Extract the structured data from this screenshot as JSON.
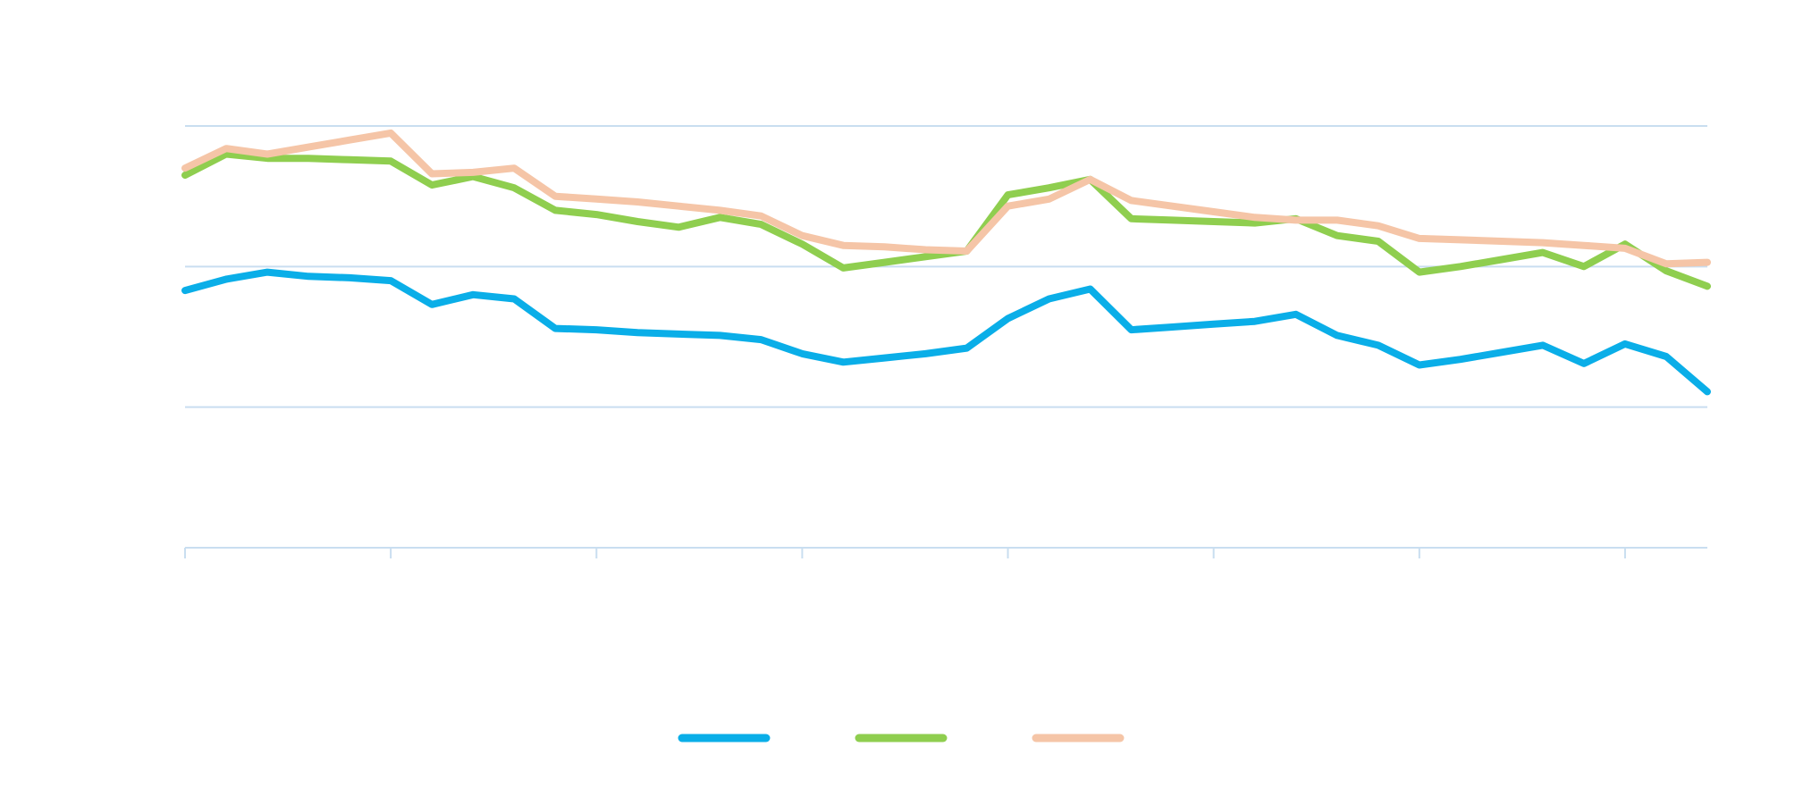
{
  "chart_data": {
    "type": "line",
    "title": "",
    "xlabel": "",
    "ylabel": "",
    "x": [
      0,
      1,
      2,
      3,
      4,
      5,
      6,
      7,
      8,
      9,
      10,
      11,
      12,
      13,
      14,
      15,
      16,
      17,
      18,
      19,
      20,
      21,
      22,
      23,
      24,
      25,
      26,
      27,
      28,
      29,
      30,
      31,
      32,
      33,
      34,
      35,
      36,
      37
    ],
    "xlim": [
      0,
      37
    ],
    "ylim": [
      0,
      3
    ],
    "grid": "horizontal",
    "legend_placement": "bottom",
    "series": [
      {
        "color": "#0aaee8",
        "values": [
          1.83,
          1.91,
          1.96,
          1.93,
          1.92,
          1.9,
          1.73,
          1.8,
          1.77,
          1.56,
          1.55,
          1.53,
          1.52,
          1.51,
          1.48,
          1.38,
          1.32,
          1.35,
          1.38,
          1.42,
          1.63,
          1.77,
          1.84,
          1.55,
          1.57,
          1.59,
          1.61,
          1.66,
          1.51,
          1.44,
          1.3,
          1.34,
          1.39,
          1.44,
          1.31,
          1.45,
          1.36,
          1.11
        ]
      },
      {
        "color": "#8fce4f",
        "values": [
          2.65,
          2.8,
          2.77,
          2.77,
          2.76,
          2.75,
          2.58,
          2.64,
          2.56,
          2.4,
          2.37,
          2.32,
          2.28,
          2.35,
          2.3,
          2.16,
          1.99,
          2.03,
          2.07,
          2.11,
          2.51,
          2.56,
          2.62,
          2.34,
          2.33,
          2.32,
          2.31,
          2.34,
          2.22,
          2.18,
          1.96,
          2.0,
          2.05,
          2.1,
          2.0,
          2.16,
          1.97,
          1.86
        ]
      },
      {
        "color": "#f5c5a7",
        "values": [
          2.7,
          2.84,
          2.8,
          2.85,
          2.9,
          2.95,
          2.66,
          2.67,
          2.7,
          2.5,
          2.48,
          2.46,
          2.43,
          2.4,
          2.36,
          2.22,
          2.15,
          2.14,
          2.12,
          2.11,
          2.43,
          2.48,
          2.62,
          2.47,
          2.43,
          2.39,
          2.35,
          2.33,
          2.33,
          2.29,
          2.2,
          2.19,
          2.18,
          2.17,
          2.15,
          2.13,
          2.02,
          2.03
        ]
      }
    ]
  }
}
